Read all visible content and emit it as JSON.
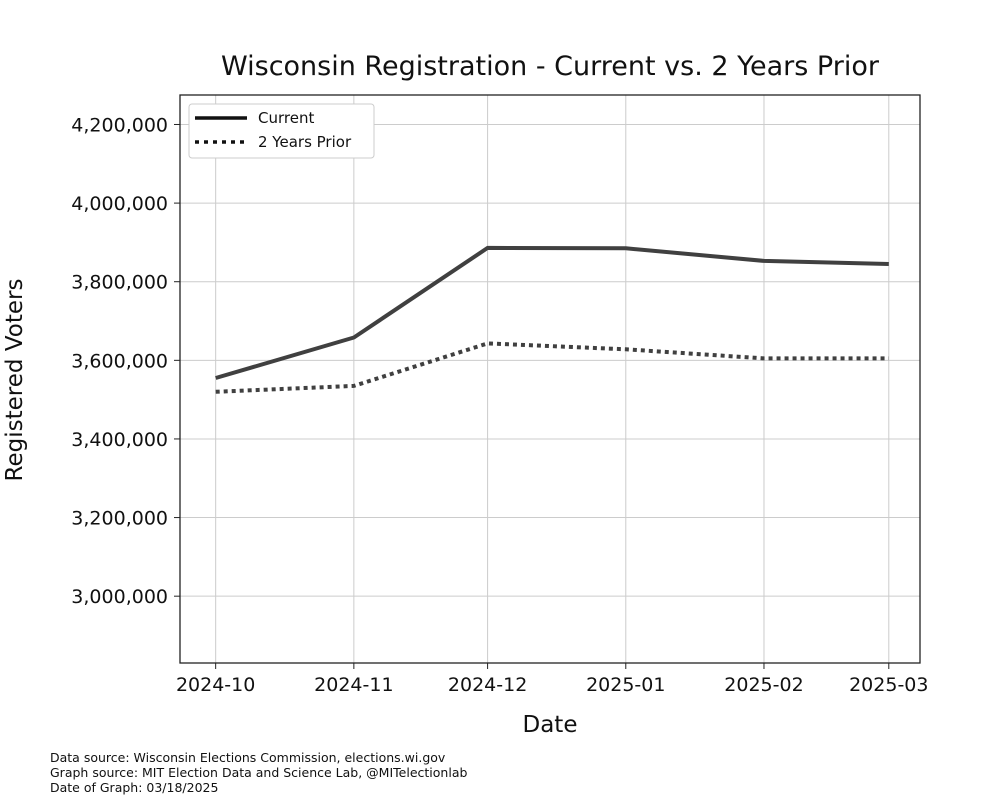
{
  "chart_data": {
    "type": "line",
    "title": "Wisconsin Registration - Current vs. 2 Years Prior",
    "xlabel": "Date",
    "ylabel": "Registered Voters",
    "categories": [
      "2024-10",
      "2024-11",
      "2024-12",
      "2025-01",
      "2025-02",
      "2025-03"
    ],
    "x": [
      "2024-10-01",
      "2024-11-01",
      "2024-12-01",
      "2025-01-01",
      "2025-02-01",
      "2025-03-01"
    ],
    "series": [
      {
        "name": "Current",
        "style": "solid",
        "color": "#404040",
        "values": [
          3555000,
          3658000,
          3886000,
          3885000,
          3853000,
          3845000
        ]
      },
      {
        "name": "2 Years Prior",
        "style": "dotted",
        "color": "#404040",
        "values": [
          3520000,
          3535000,
          3643000,
          3628000,
          3605000,
          3605000
        ]
      }
    ],
    "yticks": [
      3000000,
      3200000,
      3400000,
      3600000,
      3800000,
      4000000,
      4200000
    ],
    "ytick_labels": [
      "3,000,000",
      "3,200,000",
      "3,400,000",
      "3,600,000",
      "3,800,000",
      "4,000,000",
      "4,200,000"
    ],
    "ylim": [
      2830000,
      4275000
    ],
    "xlim": [
      "2024-09-23",
      "2025-03-08"
    ],
    "grid": true,
    "legend": "top-left"
  },
  "footer": {
    "line1": "Data source: Wisconsin Elections Commission, elections.wi.gov",
    "line2": "Graph source: MIT Election Data and Science Lab, @MITelectionlab",
    "line3": "Date of Graph: 03/18/2025"
  }
}
